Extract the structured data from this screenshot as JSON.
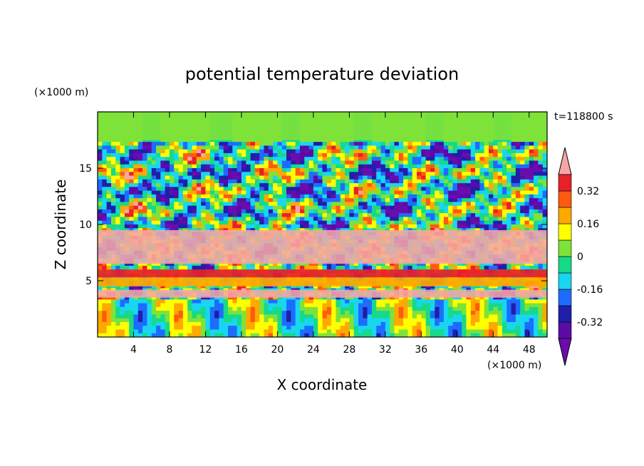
{
  "chart_data": {
    "type": "heatmap",
    "title": "potential temperature deviation",
    "xlabel": "X coordinate",
    "ylabel": "Z coordinate",
    "x_unit": "(×1000 m)",
    "y_unit": "(×1000 m)",
    "time_label": "t=118800 s",
    "xlim": [
      0,
      50
    ],
    "ylim": [
      0,
      20
    ],
    "x_ticks": [
      4,
      8,
      12,
      16,
      20,
      24,
      28,
      32,
      36,
      40,
      44,
      48
    ],
    "x_tick_labels": [
      "4",
      "8",
      "12",
      "16",
      "20",
      "24",
      "28",
      "32",
      "36",
      "40",
      "44",
      "48"
    ],
    "y_ticks": [
      5,
      10,
      15
    ],
    "y_tick_labels": [
      "5",
      "10",
      "15"
    ],
    "colorbar": {
      "levels": [
        -0.4,
        -0.32,
        -0.24,
        -0.16,
        -0.08,
        0,
        0.08,
        0.16,
        0.24,
        0.32,
        0.4
      ],
      "tick_values": [
        -0.32,
        -0.16,
        0,
        0.16,
        0.32
      ],
      "tick_labels": [
        "-0.32",
        "-0.16",
        "0",
        "0.16",
        "0.32"
      ],
      "under_color": "#6a0dad",
      "over_color": "#f4a6a6",
      "colors": [
        "#5b0aa8",
        "#1f1faa",
        "#1e6cff",
        "#19d6f0",
        "#16d98a",
        "#7ee23a",
        "#ffff00",
        "#ffa800",
        "#ff5a10",
        "#e8202a"
      ]
    },
    "bands": [
      {
        "z_range": [
          0,
          3.5
        ],
        "description_value": 0.0
      },
      {
        "z_range": [
          3.5,
          4.2
        ],
        "value": 0.45
      },
      {
        "z_range": [
          4.5,
          5.3
        ],
        "value": 0.2
      },
      {
        "z_range": [
          5.3,
          6.0
        ],
        "value": 0.36
      },
      {
        "z_range": [
          6.5,
          9.5
        ],
        "value": 0.45
      },
      {
        "z_range": [
          17.5,
          20
        ],
        "value": 0.0
      }
    ]
  }
}
